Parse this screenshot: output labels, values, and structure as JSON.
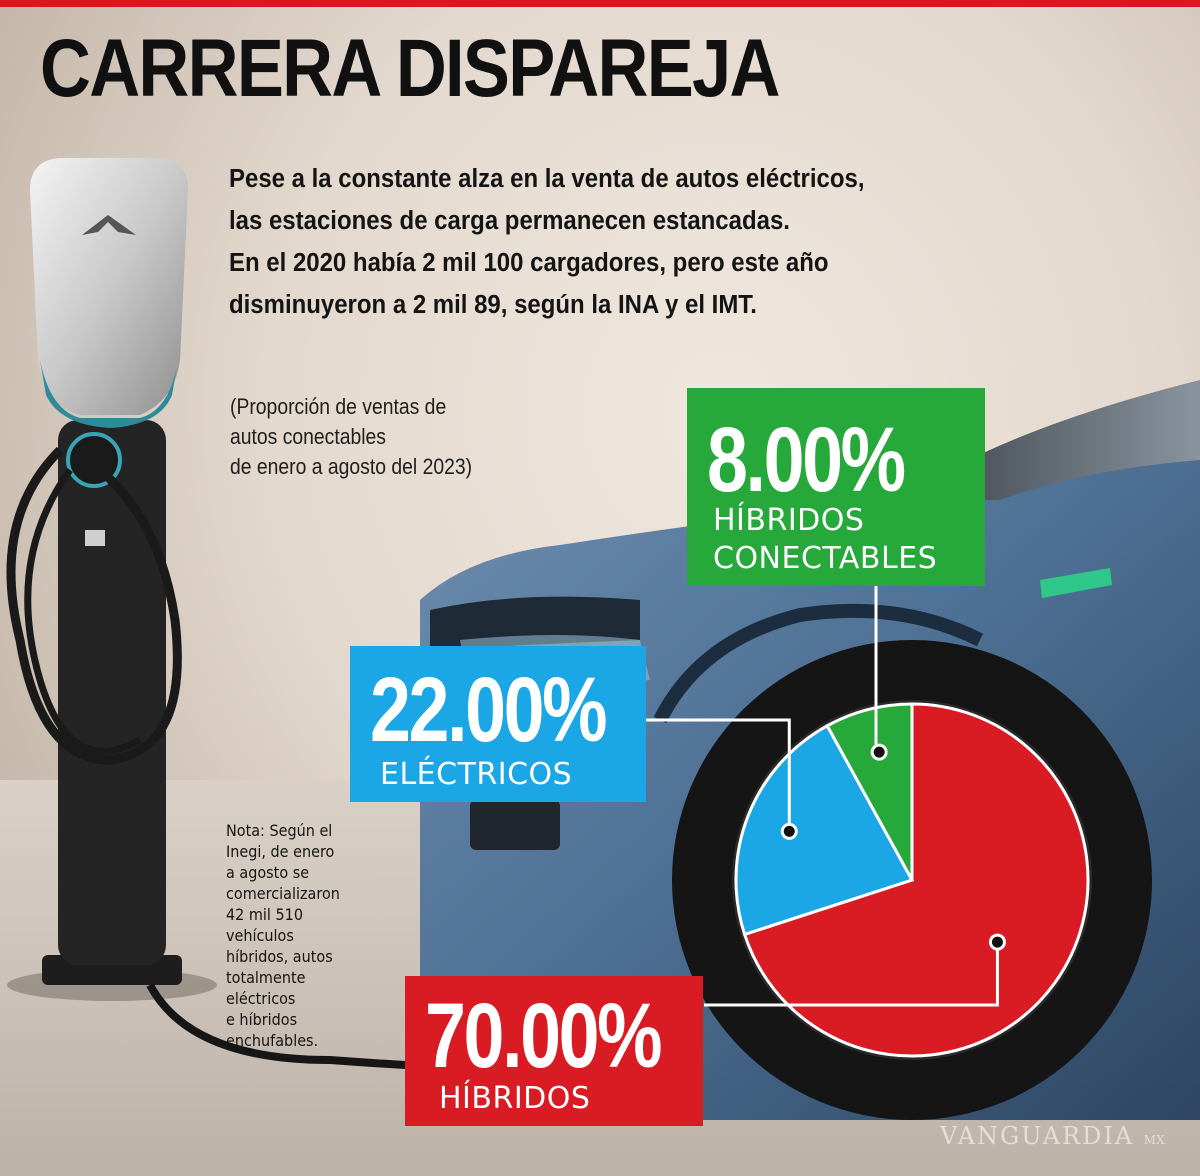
{
  "header": {
    "title": "CARRERA DISPAREJA",
    "intro_lines": [
      "Pese a la constante alza en la venta de autos eléctricos,",
      "las estaciones de carga permanecen estancadas.",
      "En el 2020 había 2 mil 100 cargadores, pero este año",
      "disminuyeron a 2 mil 89, según la INA y el IMT."
    ]
  },
  "note": {
    "lines": [
      "Nota: Según el",
      "Inegi, de enero",
      "a agosto se",
      "comercializaron",
      "42 mil 510",
      "vehículos",
      "híbridos, autos",
      "totalmente",
      "eléctricos",
      "e híbridos",
      "enchufables."
    ]
  },
  "watermark": {
    "text": "VANGUARDIA",
    "suffix": "MX"
  },
  "chart_data": {
    "type": "pie",
    "subtitle_lines": [
      "(Proporción de ventas de",
      "autos conectables",
      "de enero a agosto del 2023)"
    ],
    "categories": [
      "HÍBRIDOS",
      "ELÉCTRICOS",
      "HÍBRIDOS CONECTABLES"
    ],
    "values": [
      70.0,
      22.0,
      8.0
    ],
    "value_labels": [
      "70.00%",
      "22.00%",
      "8.00%"
    ],
    "legend_lines": [
      [
        "HÍBRIDOS"
      ],
      [
        "ELÉCTRICOS"
      ],
      [
        "HÍBRIDOS",
        "CONECTABLES"
      ]
    ],
    "colors": [
      "#d91b24",
      "#1ba6e6",
      "#27a83b"
    ],
    "start_angle_deg": 0,
    "direction": "clockwise"
  }
}
